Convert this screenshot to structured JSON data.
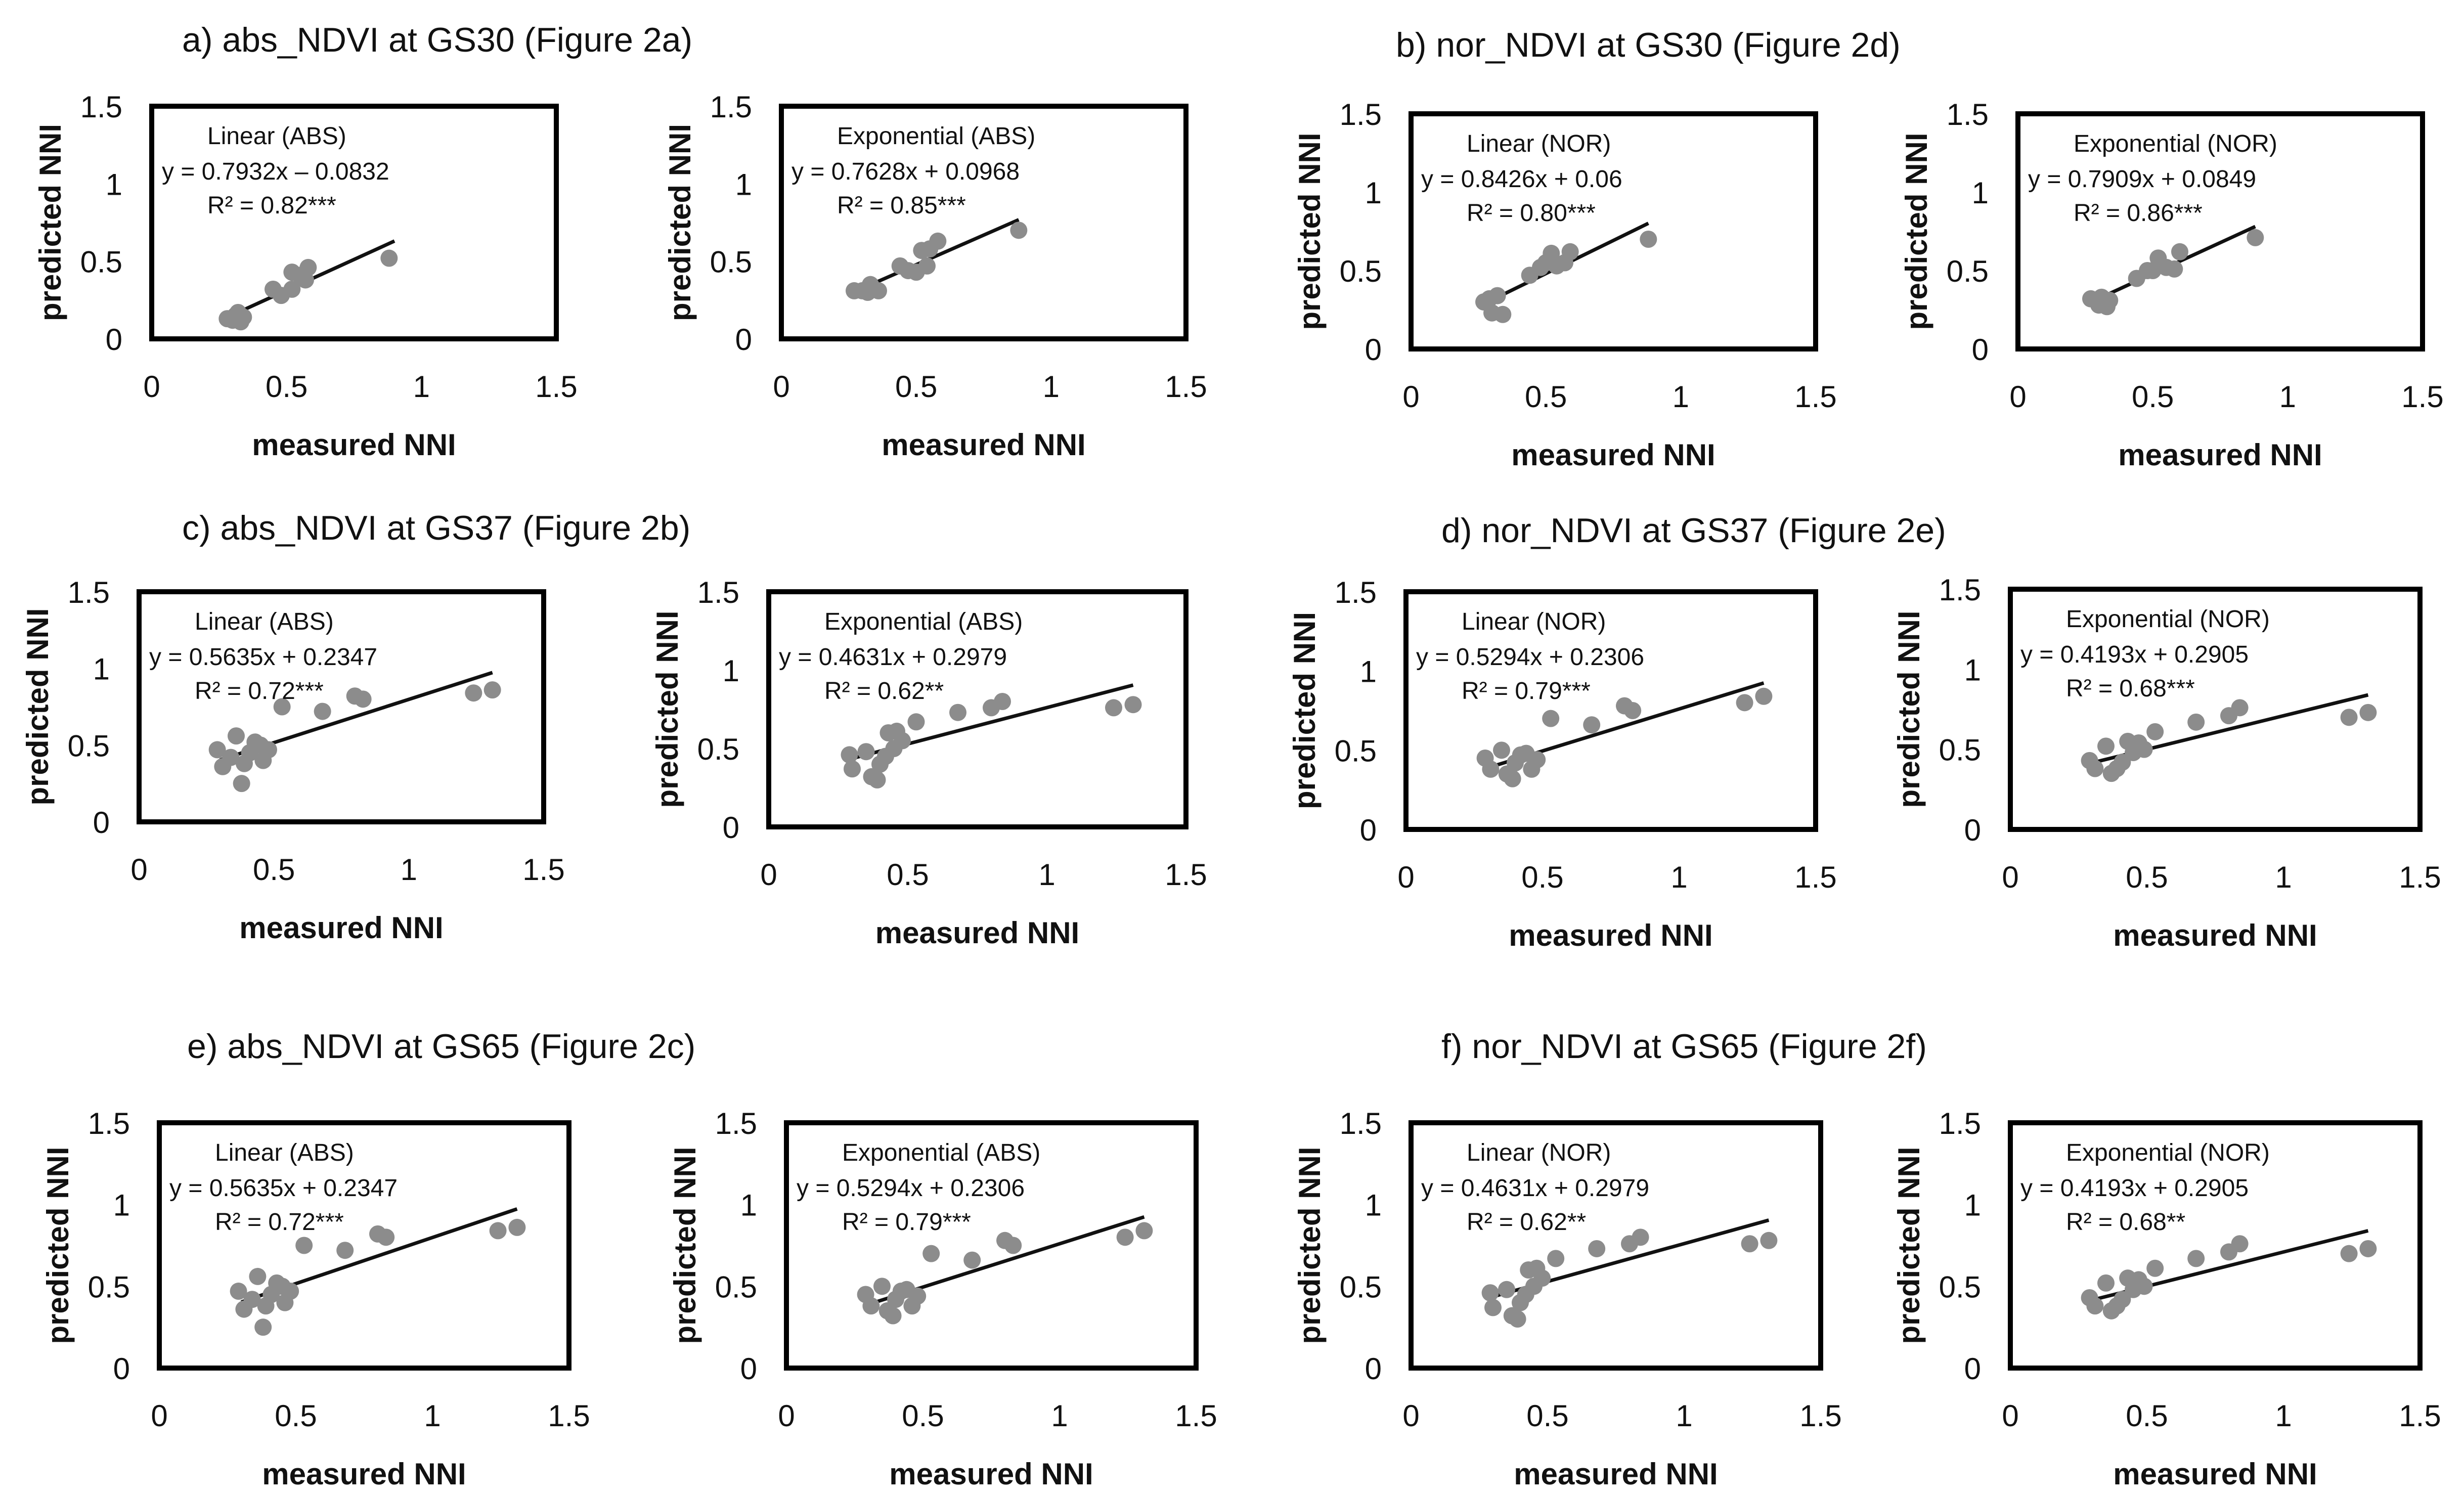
{
  "sections": [
    {
      "title": "a) abs_NDVI at GS30 (Figure 2a)"
    },
    {
      "title": "b) nor_NDVI at GS30 (Figure 2d)"
    },
    {
      "title": "c) abs_NDVI at GS37 (Figure 2b)"
    },
    {
      "title": "d) nor_NDVI at GS37 (Figure 2e)"
    },
    {
      "title": "e) abs_NDVI at GS65 (Figure 2c)"
    },
    {
      "title": "f) nor_NDVI at GS65 (Figure 2f)"
    }
  ],
  "colors": {
    "points": "#8c8c8c",
    "line": "#111111",
    "frame": "#000000",
    "text": "#111111"
  },
  "chart_data": [
    {
      "id": "a-linear",
      "type": "scatter",
      "xlabel": "measured NNI",
      "ylabel": "predicted NNI",
      "xlim": [
        0,
        1.5
      ],
      "ylim": [
        0,
        1.5
      ],
      "xticks": [
        "0",
        "0.5",
        "1",
        "1.5"
      ],
      "yticks": [
        "0",
        "0.5",
        "1",
        "1.5"
      ],
      "annotation": [
        "Linear (ABS)",
        "y = 0.7932x – 0.0832",
        "R² = 0.82***"
      ],
      "trend": {
        "slope": 0.7932,
        "intercept": -0.0832,
        "x_range": [
          0.3,
          0.9
        ]
      },
      "points": [
        [
          0.28,
          0.13
        ],
        [
          0.3,
          0.12
        ],
        [
          0.31,
          0.15
        ],
        [
          0.32,
          0.17
        ],
        [
          0.33,
          0.11
        ],
        [
          0.34,
          0.14
        ],
        [
          0.45,
          0.32
        ],
        [
          0.48,
          0.28
        ],
        [
          0.52,
          0.32
        ],
        [
          0.52,
          0.43
        ],
        [
          0.55,
          0.41
        ],
        [
          0.57,
          0.38
        ],
        [
          0.58,
          0.46
        ],
        [
          0.88,
          0.52
        ]
      ]
    },
    {
      "id": "a-exponential",
      "type": "scatter",
      "xlabel": "measured NNI",
      "ylabel": "predicted NNI",
      "xlim": [
        0,
        1.5
      ],
      "ylim": [
        0,
        1.5
      ],
      "xticks": [
        "0",
        "0.5",
        "1",
        "1.5"
      ],
      "yticks": [
        "0",
        "0.5",
        "1",
        "1.5"
      ],
      "annotation": [
        "Exponential (ABS)",
        "y = 0.7628x + 0.0968",
        "R² = 0.85***"
      ],
      "trend": {
        "slope": 0.7628,
        "intercept": 0.0968,
        "x_range": [
          0.28,
          0.88
        ]
      },
      "points": [
        [
          0.27,
          0.31
        ],
        [
          0.3,
          0.31
        ],
        [
          0.32,
          0.3
        ],
        [
          0.33,
          0.35
        ],
        [
          0.36,
          0.31
        ],
        [
          0.44,
          0.47
        ],
        [
          0.47,
          0.44
        ],
        [
          0.5,
          0.43
        ],
        [
          0.52,
          0.57
        ],
        [
          0.54,
          0.47
        ],
        [
          0.55,
          0.58
        ],
        [
          0.58,
          0.63
        ],
        [
          0.88,
          0.7
        ]
      ]
    },
    {
      "id": "b-linear",
      "type": "scatter",
      "xlabel": "measured NNI",
      "ylabel": "predicted NNI",
      "xlim": [
        0,
        1.5
      ],
      "ylim": [
        0,
        1.5
      ],
      "xticks": [
        "0",
        "0.5",
        "1",
        "1.5"
      ],
      "yticks": [
        "0",
        "0.5",
        "1",
        "1.5"
      ],
      "annotation": [
        "Linear (NOR)",
        "y = 0.8426x + 0.06",
        "R² = 0.80***"
      ],
      "trend": {
        "slope": 0.8426,
        "intercept": 0.06,
        "x_range": [
          0.28,
          0.88
        ]
      },
      "points": [
        [
          0.27,
          0.3
        ],
        [
          0.29,
          0.32
        ],
        [
          0.3,
          0.23
        ],
        [
          0.32,
          0.34
        ],
        [
          0.34,
          0.22
        ],
        [
          0.44,
          0.47
        ],
        [
          0.48,
          0.52
        ],
        [
          0.5,
          0.55
        ],
        [
          0.52,
          0.61
        ],
        [
          0.54,
          0.53
        ],
        [
          0.57,
          0.55
        ],
        [
          0.59,
          0.62
        ],
        [
          0.88,
          0.7
        ]
      ]
    },
    {
      "id": "b-exponential",
      "type": "scatter",
      "xlabel": "measured NNI",
      "ylabel": "predicted NNI",
      "xlim": [
        0,
        1.5
      ],
      "ylim": [
        0,
        1.5
      ],
      "xticks": [
        "0",
        "0.5",
        "1",
        "1.5"
      ],
      "yticks": [
        "0",
        "0.5",
        "1",
        "1.5"
      ],
      "annotation": [
        "Exponential (NOR)",
        "y = 0.7909x + 0.0849",
        "R² = 0.86***"
      ],
      "trend": {
        "slope": 0.7909,
        "intercept": 0.0849,
        "x_range": [
          0.28,
          0.88
        ]
      },
      "points": [
        [
          0.27,
          0.32
        ],
        [
          0.3,
          0.28
        ],
        [
          0.31,
          0.33
        ],
        [
          0.33,
          0.27
        ],
        [
          0.34,
          0.31
        ],
        [
          0.44,
          0.45
        ],
        [
          0.48,
          0.5
        ],
        [
          0.5,
          0.5
        ],
        [
          0.52,
          0.58
        ],
        [
          0.55,
          0.52
        ],
        [
          0.58,
          0.51
        ],
        [
          0.6,
          0.62
        ],
        [
          0.88,
          0.71
        ]
      ]
    },
    {
      "id": "c-linear",
      "type": "scatter",
      "xlabel": "measured NNI",
      "ylabel": "predicted NNI",
      "xlim": [
        0,
        1.5
      ],
      "ylim": [
        0,
        1.5
      ],
      "xticks": [
        "0",
        "0.5",
        "1",
        "1.5"
      ],
      "yticks": [
        "0",
        "0.5",
        "1",
        "1.5"
      ],
      "annotation": [
        "Linear (ABS)",
        "y = 0.5635x + 0.2347",
        "R² = 0.72***"
      ],
      "trend": {
        "slope": 0.5635,
        "intercept": 0.2347,
        "x_range": [
          0.3,
          1.31
        ]
      },
      "points": [
        [
          0.29,
          0.47
        ],
        [
          0.31,
          0.36
        ],
        [
          0.34,
          0.42
        ],
        [
          0.36,
          0.56
        ],
        [
          0.38,
          0.25
        ],
        [
          0.39,
          0.38
        ],
        [
          0.41,
          0.45
        ],
        [
          0.43,
          0.52
        ],
        [
          0.45,
          0.5
        ],
        [
          0.46,
          0.4
        ],
        [
          0.48,
          0.47
        ],
        [
          0.53,
          0.75
        ],
        [
          0.68,
          0.72
        ],
        [
          0.8,
          0.82
        ],
        [
          0.83,
          0.8
        ],
        [
          1.24,
          0.84
        ],
        [
          1.31,
          0.86
        ]
      ]
    },
    {
      "id": "c-exponential",
      "type": "scatter",
      "xlabel": "measured NNI",
      "ylabel": "predicted NNI",
      "xlim": [
        0,
        1.5
      ],
      "ylim": [
        0,
        1.5
      ],
      "xticks": [
        "0",
        "0.5",
        "1",
        "1.5"
      ],
      "yticks": [
        "0",
        "0.5",
        "1",
        "1.5"
      ],
      "annotation": [
        "Exponential (ABS)",
        "y = 0.4631x + 0.2979",
        "R² = 0.62**"
      ],
      "trend": {
        "slope": 0.4631,
        "intercept": 0.2979,
        "x_range": [
          0.3,
          1.31
        ]
      },
      "points": [
        [
          0.29,
          0.46
        ],
        [
          0.3,
          0.37
        ],
        [
          0.35,
          0.48
        ],
        [
          0.37,
          0.32
        ],
        [
          0.39,
          0.3
        ],
        [
          0.4,
          0.4
        ],
        [
          0.42,
          0.45
        ],
        [
          0.43,
          0.6
        ],
        [
          0.45,
          0.5
        ],
        [
          0.46,
          0.61
        ],
        [
          0.48,
          0.55
        ],
        [
          0.53,
          0.67
        ],
        [
          0.68,
          0.73
        ],
        [
          0.8,
          0.76
        ],
        [
          0.84,
          0.8
        ],
        [
          1.24,
          0.76
        ],
        [
          1.31,
          0.78
        ]
      ]
    },
    {
      "id": "d-linear",
      "type": "scatter",
      "xlabel": "measured NNI",
      "ylabel": "predicted NNI",
      "xlim": [
        0,
        1.5
      ],
      "ylim": [
        0,
        1.5
      ],
      "xticks": [
        "0",
        "0.5",
        "1",
        "1.5"
      ],
      "yticks": [
        "0",
        "0.5",
        "1",
        "1.5"
      ],
      "annotation": [
        "Linear (NOR)",
        "y = 0.5294x + 0.2306",
        "R² = 0.79***"
      ],
      "trend": {
        "slope": 0.5294,
        "intercept": 0.2306,
        "x_range": [
          0.3,
          1.31
        ]
      },
      "points": [
        [
          0.29,
          0.45
        ],
        [
          0.31,
          0.38
        ],
        [
          0.35,
          0.5
        ],
        [
          0.37,
          0.35
        ],
        [
          0.39,
          0.32
        ],
        [
          0.4,
          0.42
        ],
        [
          0.42,
          0.47
        ],
        [
          0.44,
          0.48
        ],
        [
          0.46,
          0.38
        ],
        [
          0.48,
          0.44
        ],
        [
          0.53,
          0.7
        ],
        [
          0.68,
          0.66
        ],
        [
          0.8,
          0.78
        ],
        [
          0.83,
          0.75
        ],
        [
          1.24,
          0.8
        ],
        [
          1.31,
          0.84
        ]
      ]
    },
    {
      "id": "d-exponential",
      "type": "scatter",
      "xlabel": "measured NNI",
      "ylabel": "predicted NNI",
      "xlim": [
        0,
        1.5
      ],
      "ylim": [
        0,
        1.5
      ],
      "xticks": [
        "0",
        "0.5",
        "1",
        "1.5"
      ],
      "yticks": [
        "0",
        "0.5",
        "1",
        "1.5"
      ],
      "annotation": [
        "Exponential (NOR)",
        "y = 0.4193x + 0.2905",
        "R² = 0.68***"
      ],
      "trend": {
        "slope": 0.4193,
        "intercept": 0.2905,
        "x_range": [
          0.3,
          1.31
        ]
      },
      "points": [
        [
          0.29,
          0.43
        ],
        [
          0.31,
          0.38
        ],
        [
          0.35,
          0.52
        ],
        [
          0.37,
          0.35
        ],
        [
          0.39,
          0.38
        ],
        [
          0.41,
          0.42
        ],
        [
          0.43,
          0.55
        ],
        [
          0.45,
          0.48
        ],
        [
          0.47,
          0.54
        ],
        [
          0.49,
          0.5
        ],
        [
          0.53,
          0.61
        ],
        [
          0.68,
          0.67
        ],
        [
          0.8,
          0.71
        ],
        [
          0.84,
          0.76
        ],
        [
          1.24,
          0.7
        ],
        [
          1.31,
          0.73
        ]
      ]
    },
    {
      "id": "e-linear",
      "type": "scatter",
      "xlabel": "measured NNI",
      "ylabel": "predicted NNI",
      "xlim": [
        0,
        1.5
      ],
      "ylim": [
        0,
        1.5
      ],
      "xticks": [
        "0",
        "0.5",
        "1",
        "1.5"
      ],
      "yticks": [
        "0",
        "0.5",
        "1",
        "1.5"
      ],
      "annotation": [
        "Linear (ABS)",
        "y = 0.5635x + 0.2347",
        "R² = 0.72***"
      ],
      "trend": {
        "slope": 0.5635,
        "intercept": 0.2347,
        "x_range": [
          0.3,
          1.31
        ]
      },
      "points": [
        [
          0.29,
          0.47
        ],
        [
          0.31,
          0.36
        ],
        [
          0.34,
          0.42
        ],
        [
          0.36,
          0.56
        ],
        [
          0.38,
          0.25
        ],
        [
          0.39,
          0.38
        ],
        [
          0.41,
          0.45
        ],
        [
          0.43,
          0.52
        ],
        [
          0.45,
          0.5
        ],
        [
          0.46,
          0.4
        ],
        [
          0.48,
          0.47
        ],
        [
          0.53,
          0.75
        ],
        [
          0.68,
          0.72
        ],
        [
          0.8,
          0.82
        ],
        [
          0.83,
          0.8
        ],
        [
          1.24,
          0.84
        ],
        [
          1.31,
          0.86
        ]
      ]
    },
    {
      "id": "e-exponential",
      "type": "scatter",
      "xlabel": "measured NNI",
      "ylabel": "predicted NNI",
      "xlim": [
        0,
        1.5
      ],
      "ylim": [
        0,
        1.5
      ],
      "xticks": [
        "0",
        "0.5",
        "1",
        "1.5"
      ],
      "yticks": [
        "0",
        "0.5",
        "1",
        "1.5"
      ],
      "annotation": [
        "Exponential (ABS)",
        "y = 0.5294x + 0.2306",
        "R² = 0.79***"
      ],
      "trend": {
        "slope": 0.5294,
        "intercept": 0.2306,
        "x_range": [
          0.3,
          1.31
        ]
      },
      "points": [
        [
          0.29,
          0.45
        ],
        [
          0.31,
          0.38
        ],
        [
          0.35,
          0.5
        ],
        [
          0.37,
          0.35
        ],
        [
          0.39,
          0.32
        ],
        [
          0.4,
          0.42
        ],
        [
          0.42,
          0.47
        ],
        [
          0.44,
          0.48
        ],
        [
          0.46,
          0.38
        ],
        [
          0.48,
          0.44
        ],
        [
          0.53,
          0.7
        ],
        [
          0.68,
          0.66
        ],
        [
          0.8,
          0.78
        ],
        [
          0.83,
          0.75
        ],
        [
          1.24,
          0.8
        ],
        [
          1.31,
          0.84
        ]
      ]
    },
    {
      "id": "f-linear",
      "type": "scatter",
      "xlabel": "measured NNI",
      "ylabel": "predicted NNI",
      "xlim": [
        0,
        1.5
      ],
      "ylim": [
        0,
        1.5
      ],
      "xticks": [
        "0",
        "0.5",
        "1",
        "1.5"
      ],
      "yticks": [
        "0",
        "0.5",
        "1",
        "1.5"
      ],
      "annotation": [
        "Linear (NOR)",
        "y = 0.4631x + 0.2979",
        "R² = 0.62**"
      ],
      "trend": {
        "slope": 0.4631,
        "intercept": 0.2979,
        "x_range": [
          0.3,
          1.31
        ]
      },
      "points": [
        [
          0.29,
          0.46
        ],
        [
          0.3,
          0.37
        ],
        [
          0.35,
          0.48
        ],
        [
          0.37,
          0.32
        ],
        [
          0.39,
          0.3
        ],
        [
          0.4,
          0.4
        ],
        [
          0.42,
          0.45
        ],
        [
          0.43,
          0.6
        ],
        [
          0.45,
          0.5
        ],
        [
          0.46,
          0.61
        ],
        [
          0.48,
          0.55
        ],
        [
          0.53,
          0.67
        ],
        [
          0.68,
          0.73
        ],
        [
          0.8,
          0.76
        ],
        [
          0.84,
          0.8
        ],
        [
          1.24,
          0.76
        ],
        [
          1.31,
          0.78
        ]
      ]
    },
    {
      "id": "f-exponential",
      "type": "scatter",
      "xlabel": "measured NNI",
      "ylabel": "predicted NNI",
      "xlim": [
        0,
        1.5
      ],
      "ylim": [
        0,
        1.5
      ],
      "xticks": [
        "0",
        "0.5",
        "1",
        "1.5"
      ],
      "yticks": [
        "0",
        "0.5",
        "1",
        "1.5"
      ],
      "annotation": [
        "Exponential (NOR)",
        "y = 0.4193x + 0.2905",
        "R² = 0.68**"
      ],
      "trend": {
        "slope": 0.4193,
        "intercept": 0.2905,
        "x_range": [
          0.3,
          1.31
        ]
      },
      "points": [
        [
          0.29,
          0.43
        ],
        [
          0.31,
          0.38
        ],
        [
          0.35,
          0.52
        ],
        [
          0.37,
          0.35
        ],
        [
          0.39,
          0.38
        ],
        [
          0.41,
          0.42
        ],
        [
          0.43,
          0.55
        ],
        [
          0.45,
          0.48
        ],
        [
          0.47,
          0.54
        ],
        [
          0.49,
          0.5
        ],
        [
          0.53,
          0.61
        ],
        [
          0.68,
          0.67
        ],
        [
          0.8,
          0.71
        ],
        [
          0.84,
          0.76
        ],
        [
          1.24,
          0.7
        ],
        [
          1.31,
          0.73
        ]
      ]
    }
  ]
}
